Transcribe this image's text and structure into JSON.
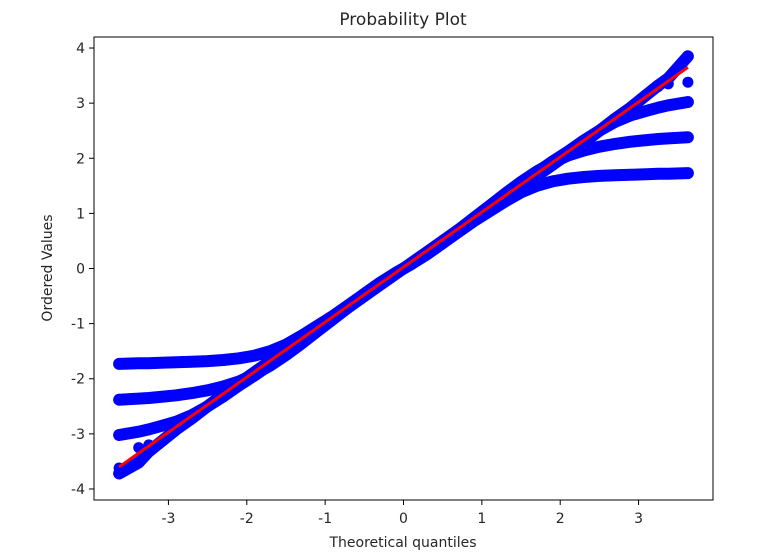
{
  "chart_data": {
    "type": "scatter",
    "title": "Probability Plot",
    "xlabel": "Theoretical quantiles",
    "ylabel": "Ordered Values",
    "xlim": [
      -3.95,
      3.95
    ],
    "ylim": [
      -4.2,
      4.2
    ],
    "xticks": [
      -3,
      -2,
      -1,
      0,
      1,
      2,
      3
    ],
    "yticks": [
      4,
      3,
      2,
      1,
      0,
      -1,
      -2,
      -3,
      -4
    ],
    "grid": false,
    "legend": "none",
    "colors": {
      "points": "#0000ff",
      "fit_line": "#ff0000"
    },
    "fit_line": {
      "x": [
        -3.63,
        3.63
      ],
      "y": [
        -3.6,
        3.65
      ]
    },
    "series": [
      {
        "x": [
          -3.63,
          -3.38,
          -3.25,
          -3.1,
          -2.9,
          -2.7,
          -2.5,
          -2.3,
          -2.1,
          -1.9,
          -1.7,
          -1.5,
          -1.3,
          -1.1,
          -0.9,
          -0.7,
          -0.5,
          -0.3,
          -0.1,
          0.1,
          0.3,
          0.5,
          0.7,
          0.9,
          1.1,
          1.3,
          1.5,
          1.7,
          1.9,
          2.1,
          2.3,
          2.5,
          2.7,
          2.9,
          3.1,
          3.25,
          3.38,
          3.63
        ],
        "y": [
          -1.73,
          -1.72,
          -1.72,
          -1.71,
          -1.7,
          -1.69,
          -1.68,
          -1.66,
          -1.63,
          -1.58,
          -1.5,
          -1.38,
          -1.22,
          -1.04,
          -0.86,
          -0.66,
          -0.46,
          -0.26,
          -0.08,
          0.08,
          0.26,
          0.46,
          0.66,
          0.86,
          1.04,
          1.22,
          1.38,
          1.5,
          1.58,
          1.63,
          1.66,
          1.68,
          1.69,
          1.7,
          1.71,
          1.72,
          1.72,
          1.73
        ]
      },
      {
        "x": [
          -3.63,
          -3.38,
          -3.25,
          -3.1,
          -2.9,
          -2.7,
          -2.5,
          -2.3,
          -2.1,
          -1.9,
          -1.7,
          -1.5,
          -1.3,
          -1.1,
          -0.9,
          -0.7,
          -0.5,
          -0.3,
          -0.1,
          0.1,
          0.3,
          0.5,
          0.7,
          0.9,
          1.1,
          1.3,
          1.5,
          1.7,
          1.9,
          2.1,
          2.3,
          2.5,
          2.7,
          2.9,
          3.1,
          3.25,
          3.38,
          3.63
        ],
        "y": [
          -2.38,
          -2.36,
          -2.35,
          -2.33,
          -2.3,
          -2.26,
          -2.21,
          -2.14,
          -2.05,
          -1.92,
          -1.76,
          -1.57,
          -1.36,
          -1.14,
          -0.92,
          -0.7,
          -0.49,
          -0.28,
          -0.09,
          0.09,
          0.28,
          0.49,
          0.7,
          0.92,
          1.14,
          1.36,
          1.57,
          1.76,
          1.92,
          2.05,
          2.14,
          2.21,
          2.26,
          2.3,
          2.33,
          2.35,
          2.36,
          2.38
        ]
      },
      {
        "x": [
          -3.63,
          -3.38,
          -3.25,
          -3.1,
          -2.9,
          -2.7,
          -2.5,
          -2.3,
          -2.1,
          -1.9,
          -1.7,
          -1.5,
          -1.3,
          -1.1,
          -0.9,
          -0.7,
          -0.5,
          -0.3,
          -0.1,
          0.1,
          0.3,
          0.5,
          0.7,
          0.9,
          1.1,
          1.3,
          1.5,
          1.7,
          1.9,
          2.1,
          2.3,
          2.5,
          2.7,
          2.9,
          3.1,
          3.25,
          3.38,
          3.63
        ],
        "y": [
          -3.02,
          -2.96,
          -2.92,
          -2.86,
          -2.78,
          -2.66,
          -2.5,
          -2.32,
          -2.12,
          -1.94,
          -1.74,
          -1.54,
          -1.34,
          -1.12,
          -0.9,
          -0.68,
          -0.46,
          -0.26,
          -0.08,
          0.08,
          0.26,
          0.46,
          0.68,
          0.9,
          1.12,
          1.34,
          1.54,
          1.74,
          1.94,
          2.12,
          2.32,
          2.5,
          2.66,
          2.78,
          2.86,
          2.92,
          2.96,
          3.02
        ]
      },
      {
        "x": [
          -3.63,
          -3.38,
          -3.25,
          -3.1,
          -2.9,
          -2.7,
          -2.5,
          -2.3,
          -2.1,
          -1.9,
          -1.7,
          -1.5,
          -1.3,
          -1.1,
          -0.9,
          -0.7,
          -0.5,
          -0.3,
          -0.1,
          0.1,
          0.3,
          0.5,
          0.7,
          0.9,
          1.1,
          1.3,
          1.5,
          1.7,
          1.9,
          2.1,
          2.3,
          2.5,
          2.7,
          2.9,
          3.1,
          3.25,
          3.38,
          3.63
        ],
        "y": [
          -3.72,
          -3.52,
          -3.32,
          -3.15,
          -2.92,
          -2.72,
          -2.5,
          -2.28,
          -2.08,
          -1.88,
          -1.68,
          -1.5,
          -1.3,
          -1.1,
          -0.9,
          -0.7,
          -0.5,
          -0.3,
          -0.1,
          0.1,
          0.3,
          0.5,
          0.7,
          0.9,
          1.1,
          1.3,
          1.5,
          1.68,
          1.88,
          2.08,
          2.28,
          2.5,
          2.72,
          2.92,
          3.15,
          3.32,
          3.45,
          3.85
        ]
      },
      {
        "x": [
          -3.63,
          -3.38,
          -3.25,
          3.25,
          3.38,
          3.63
        ],
        "y": [
          -3.62,
          -3.25,
          -3.2,
          3.3,
          3.35,
          3.38
        ]
      }
    ]
  }
}
